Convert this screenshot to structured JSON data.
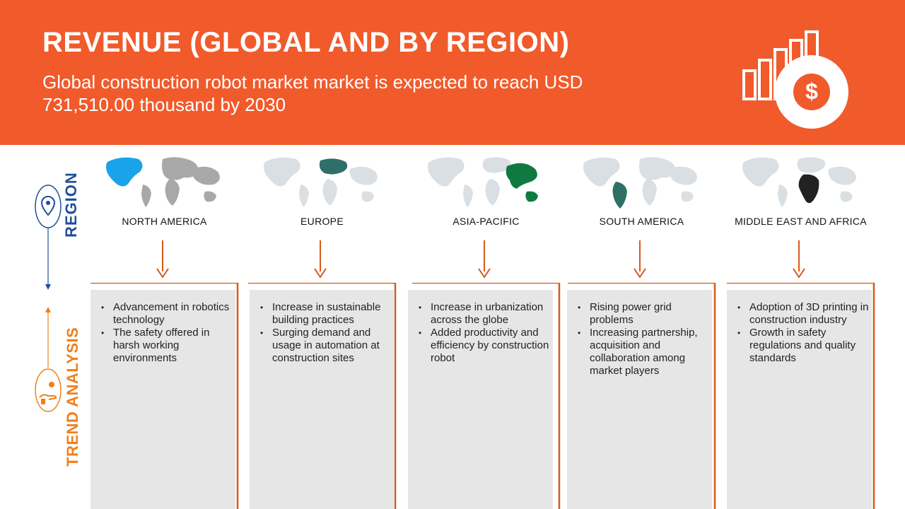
{
  "header": {
    "title": "REVENUE (GLOBAL AND BY REGION)",
    "subtitle": "Global construction robot market  market is expected to reach USD 731,510.00  thousand  by 2030",
    "icon": "revenue-chart-dollar-icon"
  },
  "rail": {
    "region_label": "REGION",
    "trend_label": "TREND ANALYSIS",
    "region_icon": "location-pin-icon",
    "trend_icon": "hand-money-icon"
  },
  "colors": {
    "brand_orange": "#f15a2b",
    "region_blue": "#1f4e9b",
    "trend_orange": "#f07f1b",
    "card_gray": "#e6e6e6"
  },
  "regions": [
    {
      "name": "NORTH AMERICA",
      "highlight_color": "#1aa3e8",
      "trends": [
        "Advancement in robotics technology",
        "The safety offered in harsh working environments"
      ]
    },
    {
      "name": "EUROPE",
      "highlight_color": "#2f6f6a",
      "trends": [
        "Increase in sustainable building practices",
        "Surging demand and usage in automation at construction sites"
      ]
    },
    {
      "name": "ASIA-PACIFIC",
      "highlight_color": "#0f7a3f",
      "trends": [
        "Increase in urbanization across the globe",
        "Added productivity and efficiency by construction robot"
      ]
    },
    {
      "name": "SOUTH AMERICA",
      "highlight_color": "#2e6f66",
      "trends": [
        "Rising power grid problems",
        "Increasing partnership, acquisition and collaboration among market players"
      ]
    },
    {
      "name": "MIDDLE EAST AND AFRICA",
      "highlight_color": "#222222",
      "trends": [
        "Adoption of 3D printing in construction industry",
        "Growth in safety regulations and quality standards"
      ]
    }
  ]
}
